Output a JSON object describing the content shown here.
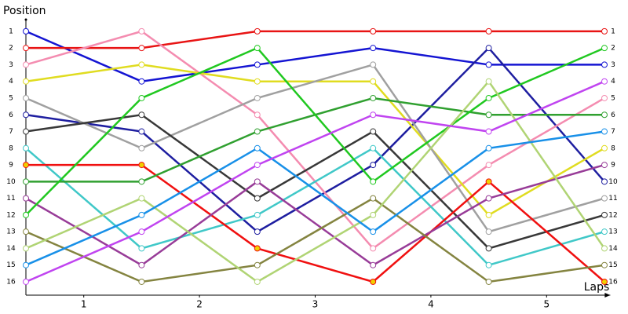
{
  "chart_data": {
    "type": "line",
    "y_label": "Position",
    "x_label": "Laps",
    "x": [
      0,
      1,
      2,
      3,
      4,
      5
    ],
    "xlim": [
      0,
      5.05
    ],
    "xticks": [
      {
        "value": 0.5,
        "label": "1"
      },
      {
        "value": 1.5,
        "label": "2"
      },
      {
        "value": 2.5,
        "label": "3"
      },
      {
        "value": 3.5,
        "label": "4"
      },
      {
        "value": 4.5,
        "label": "5"
      }
    ],
    "ylim": [
      16.8,
      0.3
    ],
    "y_inverted": true,
    "yticks": [
      1,
      2,
      3,
      4,
      5,
      6,
      7,
      8,
      9,
      10,
      11,
      12,
      13,
      14,
      15,
      16
    ],
    "marker_fill": "#ffffff",
    "series": [
      {
        "color": "#1414d2",
        "values": [
          1,
          4,
          3,
          2,
          3,
          3
        ]
      },
      {
        "color": "#1e1ea0",
        "values": [
          6,
          7,
          13,
          9,
          2,
          10
        ]
      },
      {
        "color": "#e81414",
        "values": [
          2,
          2,
          1,
          1,
          1,
          1
        ]
      },
      {
        "color": "#f48cb0",
        "values": [
          3,
          1,
          6,
          14,
          9,
          5
        ]
      },
      {
        "color": "#e0dc20",
        "values": [
          4,
          3,
          4,
          4,
          12,
          8
        ]
      },
      {
        "color": "#a0a0a0",
        "values": [
          5,
          8,
          5,
          3,
          13,
          11
        ]
      },
      {
        "color": "#383838",
        "values": [
          7,
          6,
          11,
          7,
          14,
          12
        ]
      },
      {
        "color": "#40c8c8",
        "values": [
          8,
          14,
          12,
          8,
          15,
          13
        ]
      },
      {
        "color": "#f01010",
        "marker_fill": "#f0d000",
        "values": [
          9,
          9,
          14,
          16,
          10,
          16
        ]
      },
      {
        "color": "#30a030",
        "values": [
          10,
          10,
          7,
          5,
          6,
          6
        ]
      },
      {
        "color": "#983c98",
        "values": [
          11,
          15,
          10,
          15,
          11,
          9
        ]
      },
      {
        "color": "#20c820",
        "values": [
          12,
          5,
          2,
          10,
          5,
          2
        ]
      },
      {
        "color": "#848440",
        "values": [
          13,
          16,
          15,
          11,
          16,
          15
        ]
      },
      {
        "color": "#b0d474",
        "values": [
          14,
          11,
          16,
          12,
          4,
          14
        ]
      },
      {
        "color": "#1890e8",
        "values": [
          15,
          12,
          8,
          13,
          8,
          7
        ]
      },
      {
        "color": "#c044f0",
        "values": [
          16,
          13,
          9,
          6,
          7,
          4
        ]
      }
    ]
  }
}
